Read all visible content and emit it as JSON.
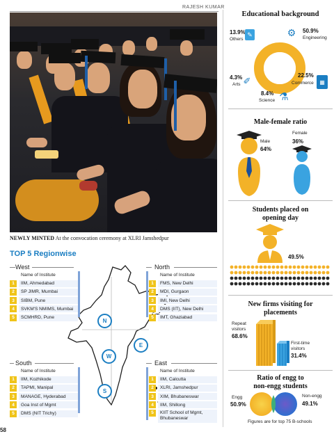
{
  "header": {
    "byline": "RAJESH KUMAR"
  },
  "photo": {
    "caption_bold": "NEWLY MINTED",
    "caption_text": " At the convocation ceremony at XLRI Jamshedpur"
  },
  "top5": {
    "title_top": "TOP 5",
    "title_rest": " Regionwise",
    "header_label": "Name of Institute",
    "regions": {
      "west": {
        "name": "West",
        "items": [
          "IIM, Ahmedabad",
          "SP JIMR, Mumbai",
          "SIBM, Pune",
          "SVKM'S NMIMS, Mumbai",
          "SCMHRD, Pune"
        ]
      },
      "north": {
        "name": "North",
        "items": [
          "FMS, New Delhi",
          "MDI, Gurgaon",
          "IMI, New Delhi",
          "DMS (IIT), New Delhi",
          "IMT, Ghaziabad"
        ]
      },
      "south": {
        "name": "South",
        "items": [
          "IIM, Kozhikode",
          "TAPMI, Manipal",
          "MANAGE, Hyderabad",
          "Goa Inst of Mgmt",
          "DMS (NIT Trichy)"
        ]
      },
      "east": {
        "name": "East",
        "items": [
          "IIM, Calcutta",
          "XLRI, Jamshedpur",
          "XIM, Bhubaneswar",
          "IIM, Shillong",
          "KIIT School of Mgmt, Bhubaneswar"
        ]
      }
    },
    "ranks": [
      "1",
      "2",
      "3",
      "4",
      "5"
    ],
    "compass": {
      "n": "N",
      "w": "W",
      "e": "E",
      "s": "S"
    }
  },
  "education": {
    "title": "Educational background",
    "others_pct": "13.9%",
    "others_label": "Others",
    "engineering_pct": "50.9%",
    "engineering_label": "Engineering",
    "arts_pct": "4.3%",
    "arts_label": "Arts",
    "commerce_pct": "22.5%",
    "commerce_label": "Commerce",
    "science_pct": "8.4%",
    "science_label": "Science",
    "shares": [
      50.9,
      22.5,
      8.4,
      4.3,
      13.9
    ]
  },
  "gender": {
    "title": "Male-female ratio",
    "male_label": "Male",
    "male_pct": "64%",
    "female_label": "Female",
    "female_pct": "36%"
  },
  "placed": {
    "title_line1": "Students placed on",
    "title_line2": "opening day",
    "pct": "49.5%",
    "fraction": 0.495
  },
  "firms": {
    "title_line1": "New firms visiting for",
    "title_line2": "placements",
    "repeat_label1": "Repeat",
    "repeat_label2": "visitors",
    "repeat_pct": "68.6%",
    "first_label1": "First-time",
    "first_label2": "visitors",
    "first_pct": "31.4%"
  },
  "ratio": {
    "title_line1": "Ratio of engg to",
    "title_line2": "non-engg students",
    "engg_label": "Engg",
    "engg_pct": "50.9%",
    "nonengg_label": "Non-engg",
    "nonengg_pct": "49.1%",
    "footnote": "Figures are for top 75 B-schools"
  },
  "page_number": "58",
  "colors": {
    "accent_orange": "#f3b228",
    "accent_blue": "#1b7ec2",
    "light_blue": "#3aa3e0"
  }
}
